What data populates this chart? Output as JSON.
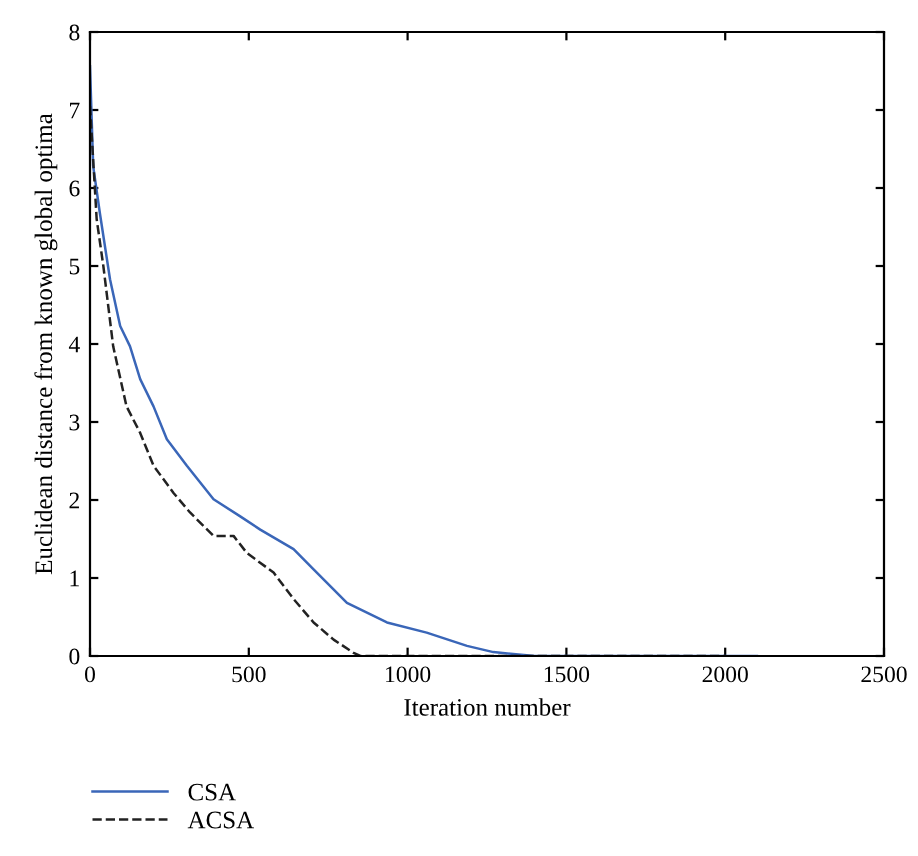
{
  "chart_data": {
    "type": "line",
    "xlabel": "Iteration number",
    "ylabel": "Euclidean distance from known global optima",
    "xlim": [
      0,
      2500
    ],
    "ylim": [
      0,
      8
    ],
    "xticks": [
      0,
      500,
      1000,
      1500,
      2000,
      2500
    ],
    "yticks": [
      0,
      1,
      2,
      3,
      4,
      5,
      6,
      7,
      8
    ],
    "grid": false,
    "legend": "bottom left",
    "series": [
      {
        "name": "CSA",
        "color": "#3a66b8",
        "line_style": "solid",
        "x": [
          0,
          10,
          31,
          63,
          95,
          126,
          158,
          200,
          242,
          305,
          389,
          473,
          536,
          641,
          704,
          809,
          935,
          1060,
          1187,
          1270,
          1400,
          2100
        ],
        "values": [
          7.56,
          6.28,
          5.68,
          4.83,
          4.23,
          3.97,
          3.55,
          3.2,
          2.78,
          2.44,
          2.01,
          1.79,
          1.62,
          1.37,
          1.11,
          0.68,
          0.43,
          0.3,
          0.13,
          0.05,
          0,
          0
        ]
      },
      {
        "name": "ACSA",
        "color": "#222222",
        "line_style": "dashed",
        "x": [
          0,
          21,
          42,
          73,
          115,
          158,
          200,
          263,
          315,
          389,
          452,
          494,
          578,
          641,
          704,
          767,
          830,
          851,
          2000
        ],
        "values": [
          7.05,
          5.6,
          5.0,
          3.97,
          3.2,
          2.86,
          2.44,
          2.09,
          1.84,
          1.54,
          1.54,
          1.32,
          1.07,
          0.73,
          0.43,
          0.21,
          0.04,
          0,
          0
        ]
      }
    ]
  }
}
